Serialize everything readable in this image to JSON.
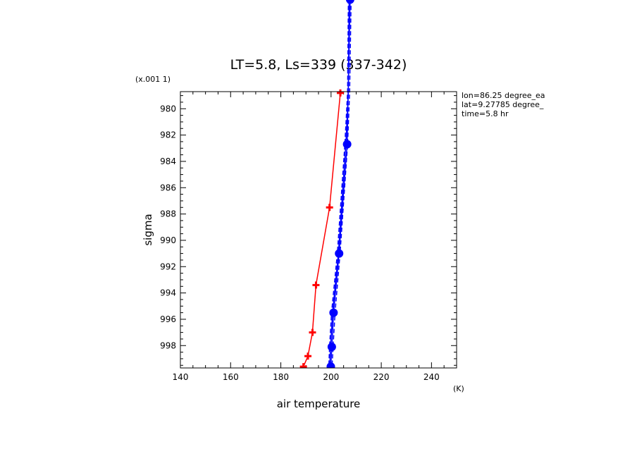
{
  "chart_data": {
    "type": "line",
    "title": "LT=5.8, Ls=339 (337-342)",
    "xlabel": "air temperature",
    "x_unit": "(K)",
    "ylabel": "sigma",
    "y_scale_label": "(x.001 1)",
    "xlim": [
      140,
      250
    ],
    "ylim": [
      999.7,
      978.7
    ],
    "y_reversed": true,
    "x_ticks": [
      140,
      160,
      180,
      200,
      220,
      240
    ],
    "y_ticks": [
      980,
      982,
      984,
      986,
      988,
      990,
      992,
      994,
      996,
      998
    ],
    "y_tick_labels": [
      "980",
      "982",
      "984",
      "986",
      "988",
      "990",
      "992",
      "994",
      "996",
      "998"
    ],
    "grid": false,
    "annotations": [
      "lon=86.25 degree_ea",
      "lat=9.27785 degree_",
      "time=5.8 hr"
    ],
    "series": [
      {
        "color": "#ff0000",
        "marker": "plus",
        "dash": "solid",
        "points": [
          {
            "x": 203.7,
            "y": 978.8
          },
          {
            "x": 199.4,
            "y": 987.5
          },
          {
            "x": 194.0,
            "y": 993.4
          },
          {
            "x": 192.6,
            "y": 997.0
          },
          {
            "x": 190.8,
            "y": 998.8
          },
          {
            "x": 189.0,
            "y": 999.6
          }
        ]
      },
      {
        "color": "#0000ff",
        "marker": "dot",
        "dash": "solid",
        "points": [
          {
            "x": 207.6,
            "y": 971.7
          },
          {
            "x": 206.4,
            "y": 982.7
          },
          {
            "x": 203.2,
            "y": 991.0
          },
          {
            "x": 201.0,
            "y": 995.5
          },
          {
            "x": 200.3,
            "y": 998.1
          },
          {
            "x": 199.9,
            "y": 999.6
          }
        ]
      },
      {
        "color": "#0000ff",
        "marker": "none",
        "dash": "dashed",
        "points": [
          {
            "x": 208.0,
            "y": 971.7
          },
          {
            "x": 207.4,
            "y": 978.7
          },
          {
            "x": 206.6,
            "y": 982.7
          },
          {
            "x": 203.6,
            "y": 991.0
          },
          {
            "x": 201.6,
            "y": 995.5
          },
          {
            "x": 200.8,
            "y": 998.1
          },
          {
            "x": 200.4,
            "y": 999.6
          }
        ]
      },
      {
        "color": "#0000ff",
        "marker": "none",
        "dash": "solid",
        "points": [
          {
            "x": 207.2,
            "y": 971.7
          },
          {
            "x": 206.9,
            "y": 978.7
          },
          {
            "x": 205.9,
            "y": 982.7
          },
          {
            "x": 202.9,
            "y": 991.0
          },
          {
            "x": 200.6,
            "y": 995.5
          },
          {
            "x": 199.8,
            "y": 998.1
          },
          {
            "x": 199.5,
            "y": 999.6
          }
        ]
      },
      {
        "color": "#0000ff",
        "marker": "none",
        "dash": "dashed",
        "points": [
          {
            "x": 206.9,
            "y": 971.7
          },
          {
            "x": 206.6,
            "y": 978.7
          },
          {
            "x": 205.5,
            "y": 982.7
          },
          {
            "x": 202.5,
            "y": 991.0
          },
          {
            "x": 200.2,
            "y": 995.5
          },
          {
            "x": 199.4,
            "y": 998.1
          },
          {
            "x": 199.1,
            "y": 999.6
          }
        ]
      }
    ]
  }
}
